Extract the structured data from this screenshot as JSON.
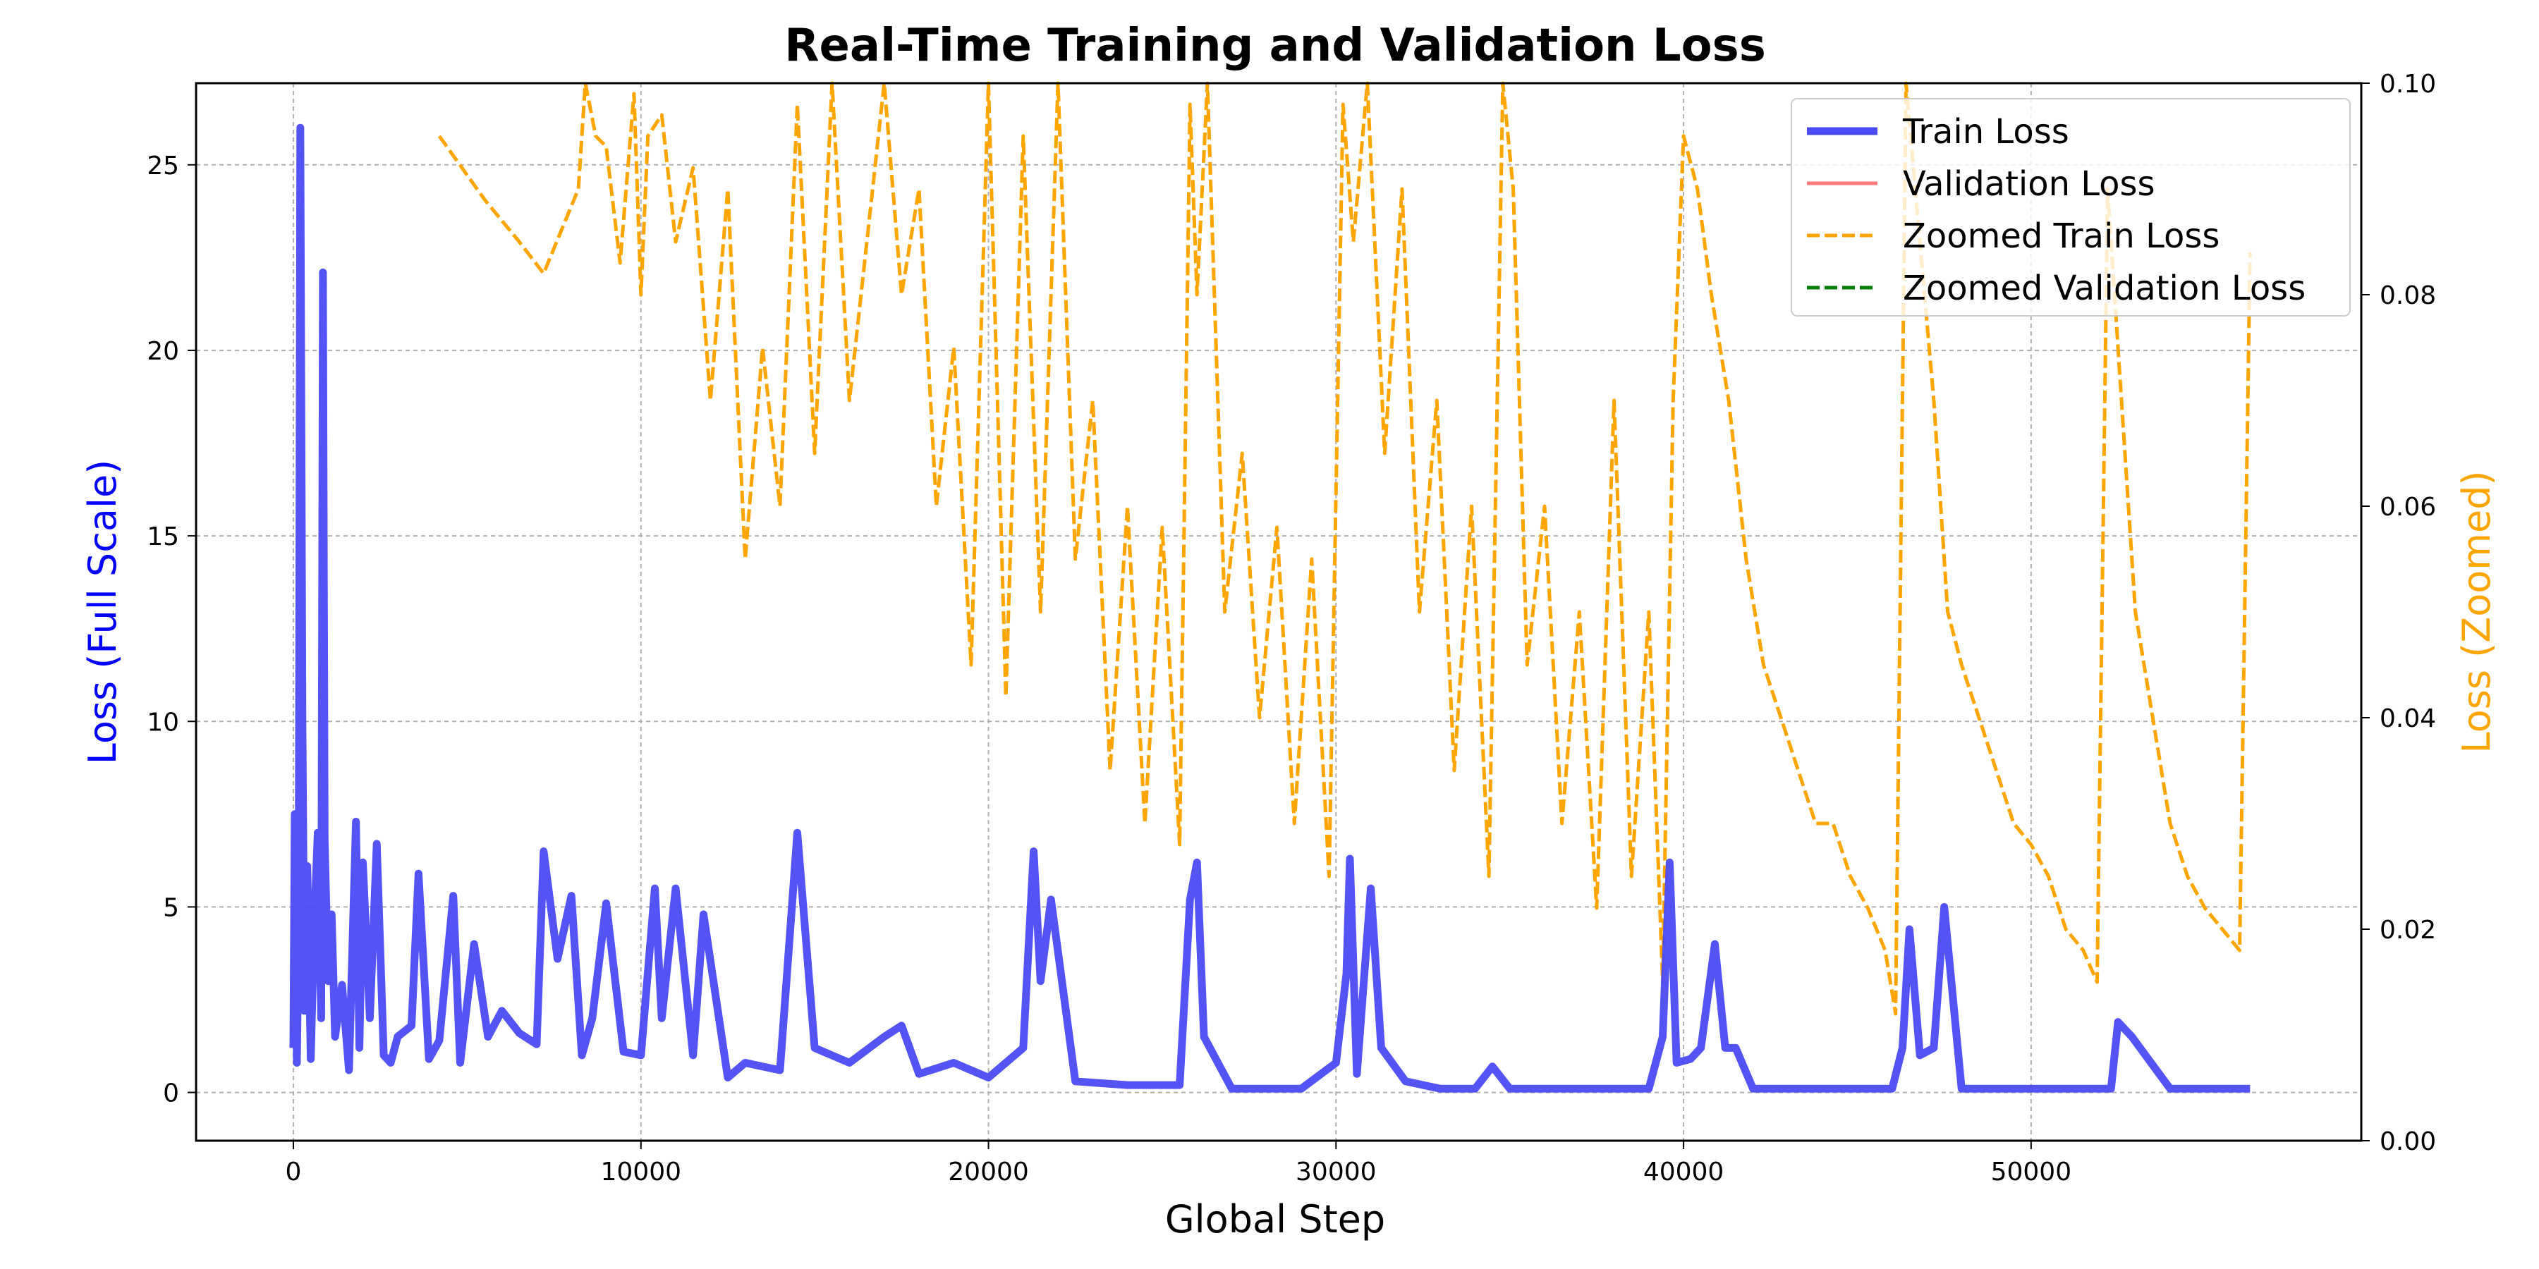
{
  "chart_data": {
    "type": "line",
    "title": "Real-Time Training and Validation Loss",
    "xlabel": "Global Step",
    "ylabel_left": "Loss (Full Scale)",
    "ylabel_right": "Loss (Zoomed)",
    "xlim": [
      -2800,
      59500
    ],
    "ylim_left": [
      -1.3,
      27.2
    ],
    "ylim_right": [
      0.0,
      0.1
    ],
    "x_ticks": [
      0,
      10000,
      20000,
      30000,
      40000,
      50000
    ],
    "y_left_ticks": [
      0,
      5,
      10,
      15,
      20,
      25
    ],
    "y_right_ticks": [
      0.0,
      0.02,
      0.04,
      0.06,
      0.08,
      0.1
    ],
    "x_tick_labels": [
      "0",
      "10000",
      "20000",
      "30000",
      "40000",
      "50000"
    ],
    "y_left_tick_labels": [
      "0",
      "5",
      "10",
      "15",
      "20",
      "25"
    ],
    "y_right_tick_labels": [
      "0.00",
      "0.02",
      "0.04",
      "0.06",
      "0.08",
      "0.10"
    ],
    "grid": true,
    "legend_position": "top-right",
    "colors": {
      "train": "#4a4af5",
      "validation": "#f87a7a",
      "zoomed_train": "#ffa500",
      "zoomed_validation": "#008000",
      "left_axis_label": "#0000ff",
      "right_axis_label": "#ffa500",
      "grid": "#b0b0b0"
    },
    "series": [
      {
        "name": "Train Loss",
        "axis": "left",
        "style": "solid-thick",
        "x": [
          0,
          40,
          100,
          150,
          200,
          260,
          320,
          400,
          500,
          600,
          700,
          800,
          850,
          900,
          1000,
          1100,
          1200,
          1400,
          1600,
          1800,
          1900,
          2000,
          2200,
          2400,
          2600,
          2800,
          3000,
          3400,
          3600,
          3900,
          4200,
          4600,
          4800,
          5200,
          5600,
          6000,
          6500,
          7000,
          7200,
          7600,
          8000,
          8300,
          8600,
          9000,
          9500,
          10000,
          10400,
          10600,
          11000,
          11500,
          11800,
          12500,
          13000,
          14000,
          14500,
          15000,
          16000,
          17000,
          17500,
          18000,
          19000,
          20000,
          21000,
          21300,
          21500,
          21800,
          22500,
          24000,
          25500,
          25800,
          26000,
          26200,
          27000,
          28000,
          29000,
          30000,
          30300,
          30400,
          30600,
          31000,
          31300,
          32000,
          33000,
          34000,
          34500,
          35000,
          36000,
          37000,
          38000,
          39000,
          39400,
          39600,
          39800,
          40200,
          40500,
          40900,
          41200,
          41500,
          42000,
          44000,
          46000,
          46300,
          46500,
          46800,
          47200,
          47500,
          48000,
          50000,
          52000,
          52300,
          52500,
          52900,
          54000,
          56000,
          56300
        ],
        "y": [
          1.2,
          7.5,
          0.8,
          4.2,
          26.0,
          10.0,
          2.2,
          6.1,
          0.9,
          4.5,
          7.0,
          2.0,
          22.1,
          6.8,
          3.0,
          4.8,
          1.5,
          2.9,
          0.6,
          7.3,
          1.2,
          6.2,
          2.0,
          6.7,
          1.0,
          0.8,
          1.5,
          1.8,
          5.9,
          0.9,
          1.4,
          5.3,
          0.8,
          4.0,
          1.5,
          2.2,
          1.6,
          1.3,
          6.5,
          3.6,
          5.3,
          1.0,
          2.0,
          5.1,
          1.1,
          1.0,
          5.5,
          2.0,
          5.5,
          1.0,
          4.8,
          0.4,
          0.8,
          0.6,
          7.0,
          1.2,
          0.8,
          1.5,
          1.8,
          0.5,
          0.8,
          0.4,
          1.2,
          6.5,
          3.0,
          5.2,
          0.3,
          0.2,
          0.2,
          5.2,
          6.2,
          1.5,
          0.1,
          0.1,
          0.1,
          0.8,
          3.2,
          6.3,
          0.5,
          5.5,
          1.2,
          0.3,
          0.1,
          0.1,
          0.7,
          0.1,
          0.1,
          0.1,
          0.1,
          0.1,
          1.5,
          6.2,
          0.8,
          0.9,
          1.2,
          4.0,
          1.2,
          1.2,
          0.1,
          0.1,
          0.1,
          1.2,
          4.4,
          1.0,
          1.2,
          5.0,
          0.1,
          0.1,
          0.1,
          0.1,
          1.9,
          1.5,
          0.1,
          0.1,
          0.1
        ]
      },
      {
        "name": "Validation Loss",
        "axis": "left",
        "style": "solid",
        "x": [],
        "y": []
      },
      {
        "name": "Zoomed Train Loss",
        "axis": "right",
        "style": "dashed",
        "x": [
          4200,
          5500,
          6500,
          7200,
          8200,
          8400,
          8700,
          9000,
          9400,
          9800,
          10000,
          10200,
          10600,
          11000,
          11500,
          12000,
          12500,
          13000,
          13500,
          14000,
          14500,
          15000,
          15500,
          16000,
          16500,
          17000,
          17500,
          18000,
          18500,
          19000,
          19500,
          20000,
          20500,
          21000,
          21500,
          22000,
          22500,
          23000,
          23500,
          24000,
          24500,
          25000,
          25500,
          25800,
          26000,
          26300,
          26800,
          27300,
          27800,
          28300,
          28800,
          29300,
          29800,
          30200,
          30500,
          30900,
          31400,
          31900,
          32400,
          32900,
          33400,
          33900,
          34400,
          34800,
          35100,
          35500,
          36000,
          36500,
          37000,
          37500,
          38000,
          38500,
          39000,
          39400,
          39700,
          40000,
          40400,
          40800,
          41300,
          41800,
          42300,
          42800,
          43300,
          43800,
          44300,
          44800,
          45300,
          45800,
          46100,
          46400,
          46800,
          47200,
          47600,
          48000,
          48500,
          49000,
          49500,
          50000,
          50500,
          51000,
          51500,
          51900,
          52200,
          52600,
          53000,
          53500,
          54000,
          54500,
          55000,
          55500,
          56000,
          56300
        ],
        "y": [
          0.095,
          0.089,
          0.085,
          0.082,
          0.09,
          0.1,
          0.095,
          0.094,
          0.083,
          0.099,
          0.08,
          0.095,
          0.097,
          0.085,
          0.092,
          0.07,
          0.09,
          0.055,
          0.075,
          0.06,
          0.098,
          0.065,
          0.1,
          0.07,
          0.085,
          0.1,
          0.08,
          0.09,
          0.06,
          0.075,
          0.045,
          0.1,
          0.042,
          0.095,
          0.05,
          0.1,
          0.055,
          0.07,
          0.035,
          0.06,
          0.03,
          0.058,
          0.028,
          0.098,
          0.08,
          0.1,
          0.05,
          0.065,
          0.04,
          0.058,
          0.03,
          0.055,
          0.025,
          0.098,
          0.085,
          0.1,
          0.065,
          0.09,
          0.05,
          0.07,
          0.035,
          0.06,
          0.025,
          0.1,
          0.09,
          0.045,
          0.06,
          0.03,
          0.05,
          0.022,
          0.07,
          0.025,
          0.05,
          0.015,
          0.07,
          0.095,
          0.09,
          0.08,
          0.07,
          0.055,
          0.045,
          0.04,
          0.035,
          0.03,
          0.03,
          0.025,
          0.022,
          0.018,
          0.012,
          0.1,
          0.085,
          0.07,
          0.05,
          0.045,
          0.04,
          0.035,
          0.03,
          0.028,
          0.025,
          0.02,
          0.018,
          0.015,
          0.09,
          0.07,
          0.05,
          0.04,
          0.03,
          0.025,
          0.022,
          0.02,
          0.018,
          0.084
        ]
      },
      {
        "name": "Zoomed Validation Loss",
        "axis": "right",
        "style": "dashed",
        "x": [],
        "y": []
      }
    ]
  }
}
